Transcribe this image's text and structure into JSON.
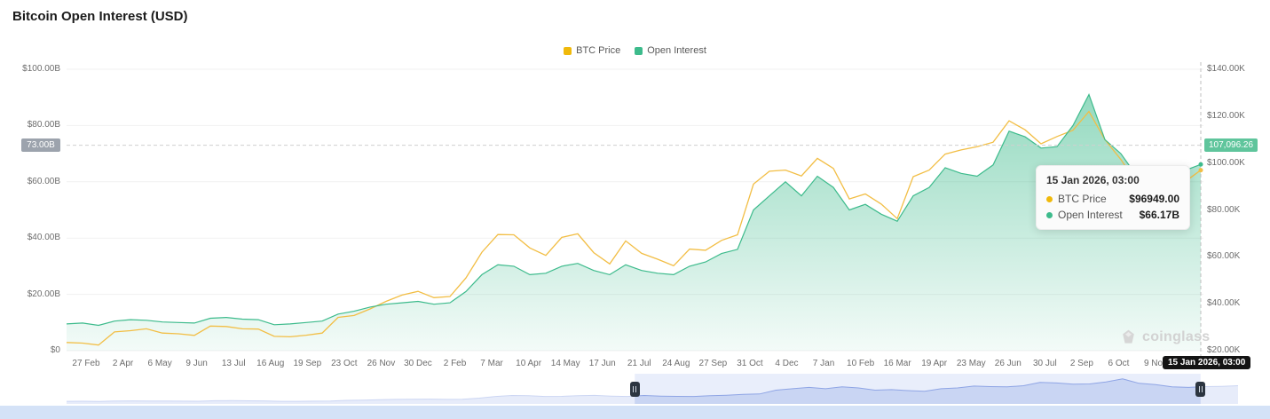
{
  "title": "Bitcoin Open Interest (USD)",
  "legend": [
    {
      "label": "BTC Price",
      "color": "#F0B90B"
    },
    {
      "label": "Open Interest",
      "color": "#3DBB8C"
    }
  ],
  "left_axis": {
    "ticks": [
      {
        "label": "$100.00B",
        "value": 100
      },
      {
        "label": "$80.00B",
        "value": 80
      },
      {
        "label": "$60.00B",
        "value": 60
      },
      {
        "label": "$40.00B",
        "value": 40
      },
      {
        "label": "$20.00B",
        "value": 20
      },
      {
        "label": "$0",
        "value": 0
      }
    ]
  },
  "right_axis": {
    "ticks": [
      {
        "label": "$140.00K",
        "value": 140
      },
      {
        "label": "$120.00K",
        "value": 120
      },
      {
        "label": "$100.00K",
        "value": 100
      },
      {
        "label": "$80.00K",
        "value": 80
      },
      {
        "label": "$60.00K",
        "value": 60
      },
      {
        "label": "$40.00K",
        "value": 40
      },
      {
        "label": "$20.00K",
        "value": 20
      }
    ]
  },
  "hover": {
    "left_badge": "73.00B",
    "left_value": 73,
    "right_badge": "107,096.26",
    "cursor_badge": "15 Jan 2026, 03:00"
  },
  "tooltip": {
    "title": "15 Jan 2026, 03:00",
    "rows": [
      {
        "label": "BTC Price",
        "value": "$96949.00",
        "color": "#F0B90B"
      },
      {
        "label": "Open Interest",
        "value": "$66.17B",
        "color": "#3DBB8C"
      }
    ]
  },
  "watermark": "coinglass",
  "chart_data": {
    "type": "line",
    "title": "Bitcoin Open Interest (USD)",
    "x_tick_labels": [
      "27 Feb",
      "2 Apr",
      "6 May",
      "9 Jun",
      "13 Jul",
      "16 Aug",
      "19 Sep",
      "23 Oct",
      "26 Nov",
      "30 Dec",
      "2 Feb",
      "7 Mar",
      "10 Apr",
      "14 May",
      "17 Jun",
      "21 Jul",
      "24 Aug",
      "27 Sep",
      "31 Oct",
      "4 Dec",
      "7 Jan",
      "10 Feb",
      "16 Mar",
      "19 Apr",
      "23 May",
      "26 Jun",
      "30 Jul",
      "2 Sep",
      "6 Oct",
      "9 Nov"
    ],
    "x_cursor_label": "15 Jan 2026, 03:00",
    "left_ylim": [
      0,
      100
    ],
    "right_ylim": [
      20,
      140
    ],
    "left_axis_unit": "USD billions (Open Interest)",
    "right_axis_unit": "USD thousands (BTC Price)",
    "legend_position": "top-center",
    "grid": true,
    "series": [
      {
        "name": "BTC Price",
        "axis": "right",
        "color": "#F2BE45",
        "values": [
          23.5,
          23.2,
          22.4,
          28.0,
          28.5,
          29.3,
          27.5,
          27.2,
          26.5,
          30.5,
          30.3,
          29.3,
          29.2,
          26.1,
          25.9,
          26.6,
          27.5,
          34.2,
          35.0,
          37.8,
          41.0,
          43.7,
          45.3,
          42.6,
          43.1,
          51.0,
          62.0,
          69.5,
          69.4,
          63.8,
          60.6,
          68.3,
          69.8,
          61.8,
          57.0,
          66.8,
          61.5,
          59.0,
          56.2,
          63.3,
          62.8,
          67.0,
          69.4,
          91.0,
          96.5,
          97.0,
          94.5,
          102.0,
          97.7,
          84.7,
          86.8,
          82.5,
          76.3,
          94.2,
          97.0,
          103.8,
          105.6,
          107.0,
          108.9,
          118.0,
          114.2,
          108.2,
          111.3,
          114.0,
          122.0,
          110.0,
          101.5,
          91.3,
          87.0,
          88.5,
          92.0,
          96.95
        ]
      },
      {
        "name": "Open Interest",
        "axis": "left",
        "color": "#3DBB8C",
        "fill": true,
        "values": [
          9.5,
          9.8,
          9.0,
          10.5,
          11.0,
          10.8,
          10.2,
          10.0,
          9.8,
          11.5,
          11.8,
          11.2,
          11.0,
          9.2,
          9.5,
          10.0,
          10.5,
          13.0,
          14.0,
          15.5,
          16.5,
          17.0,
          17.5,
          16.5,
          17.0,
          21.0,
          27.0,
          30.5,
          30.0,
          27.0,
          27.5,
          30.0,
          31.0,
          28.5,
          27.0,
          30.5,
          28.5,
          27.5,
          27.0,
          30.0,
          31.5,
          34.5,
          36.0,
          50.0,
          55.0,
          60.0,
          55.0,
          62.0,
          58.0,
          50.0,
          52.0,
          48.5,
          46.0,
          55.0,
          58.0,
          65.0,
          63.0,
          62.0,
          66.0,
          78.0,
          76.0,
          72.0,
          72.5,
          80.0,
          91.0,
          75.0,
          70.0,
          62.0,
          60.0,
          63.0,
          64.0,
          66.17
        ]
      }
    ],
    "last_point": {
      "btc_price": 96949.0,
      "open_interest_b": 66.17
    },
    "navigator": {
      "series": "Open Interest",
      "selection": [
        0.485,
        0.968
      ]
    }
  }
}
